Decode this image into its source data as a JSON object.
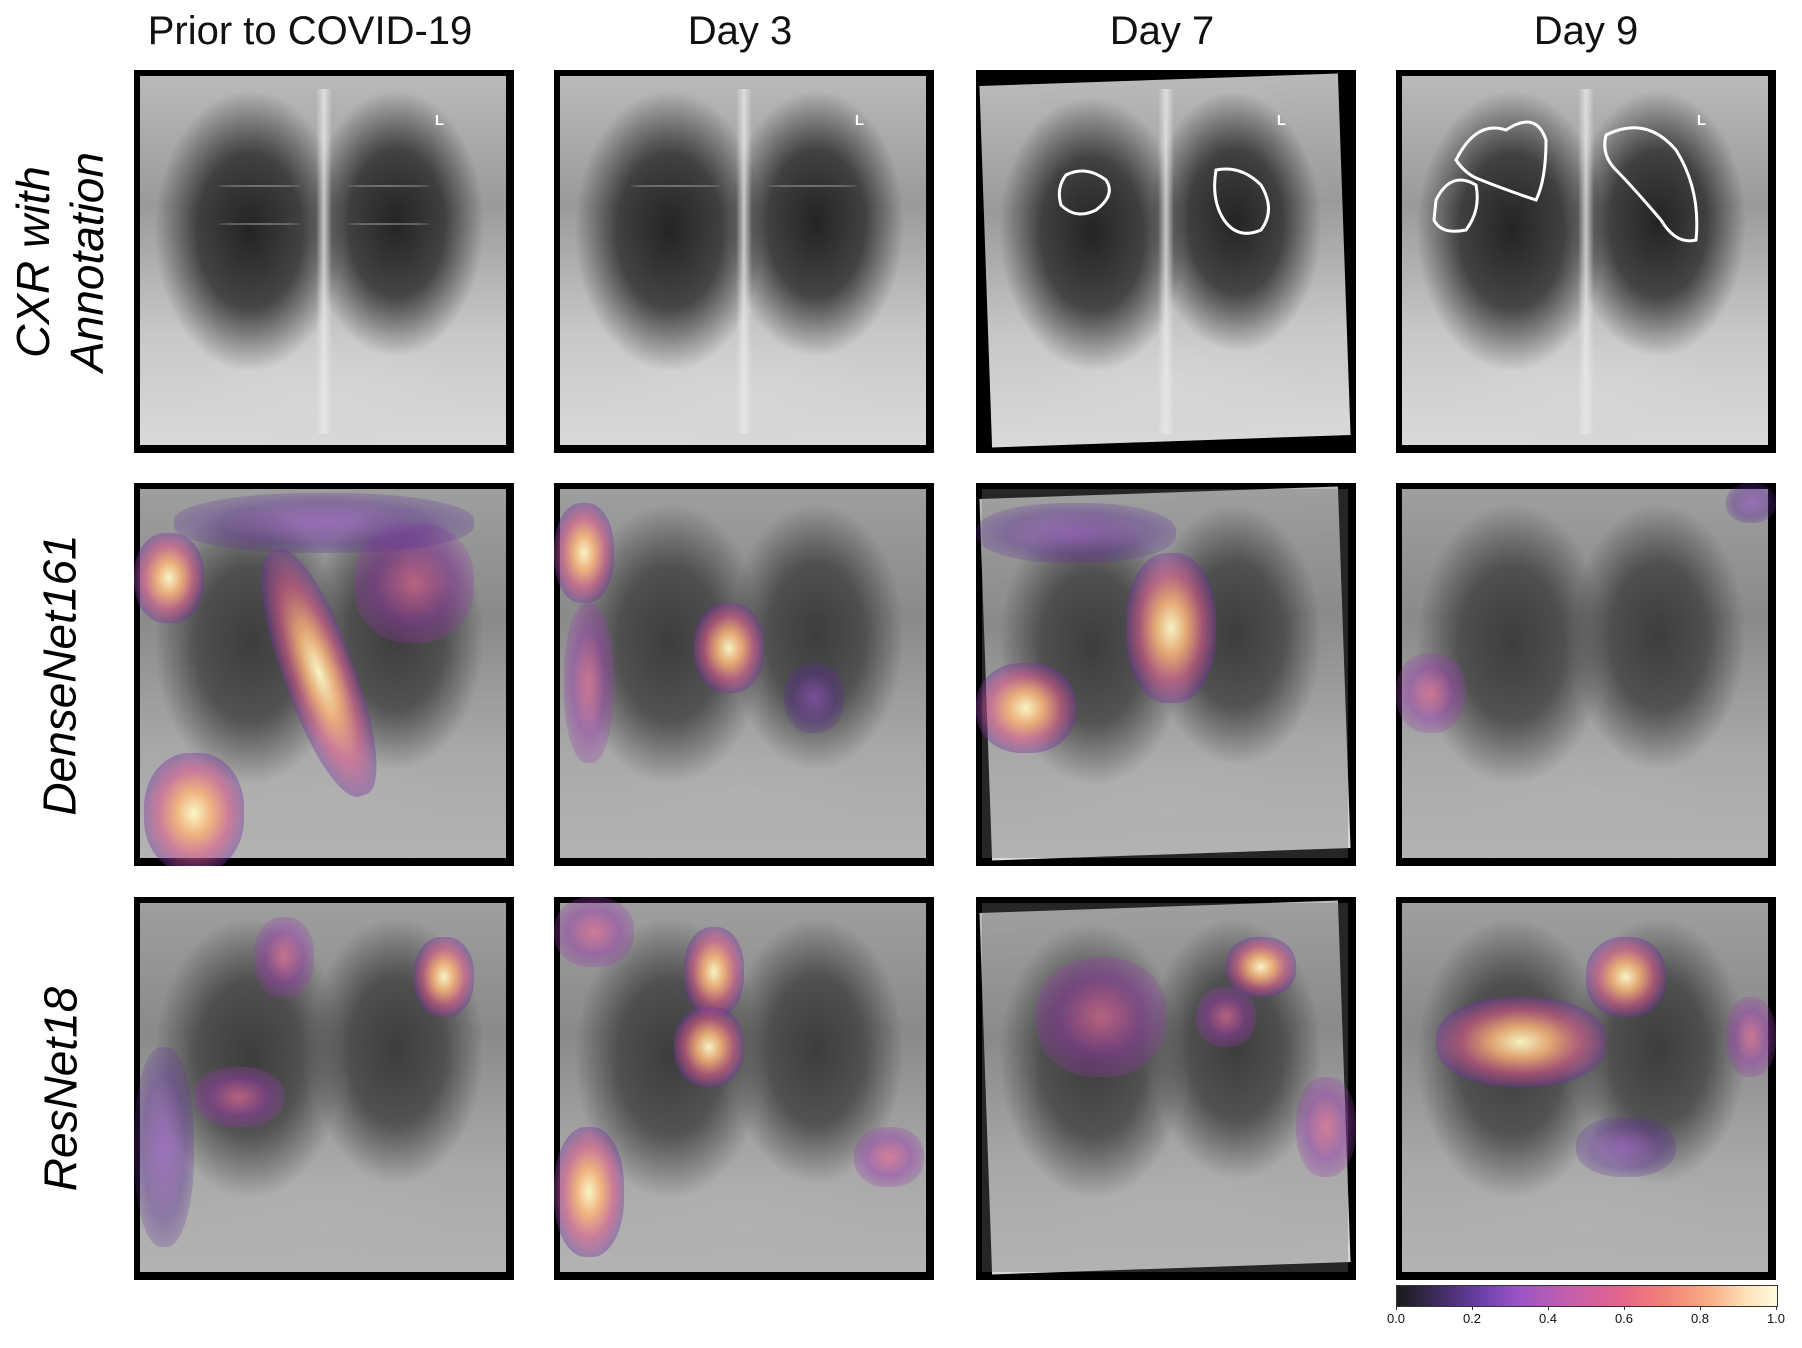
{
  "columns": [
    "Prior to COVID-19",
    "Day 3",
    "Day 7",
    "Day 9"
  ],
  "rows": [
    "CXR with Annotation",
    "DenseNet161",
    "ResNet18"
  ],
  "image_markers": {
    "r0c0": "L",
    "r0c1": "L",
    "r0c2": "L",
    "r0c3": "L"
  },
  "colorbar": {
    "ticks": [
      "0.0",
      "0.2",
      "0.4",
      "0.6",
      "0.8",
      "1.0"
    ],
    "colormap": "magma",
    "colors": [
      "#1a1a1a",
      "#6b3fa8",
      "#c35fae",
      "#f27f78",
      "#fde2b8",
      "#fffbe0"
    ]
  }
}
